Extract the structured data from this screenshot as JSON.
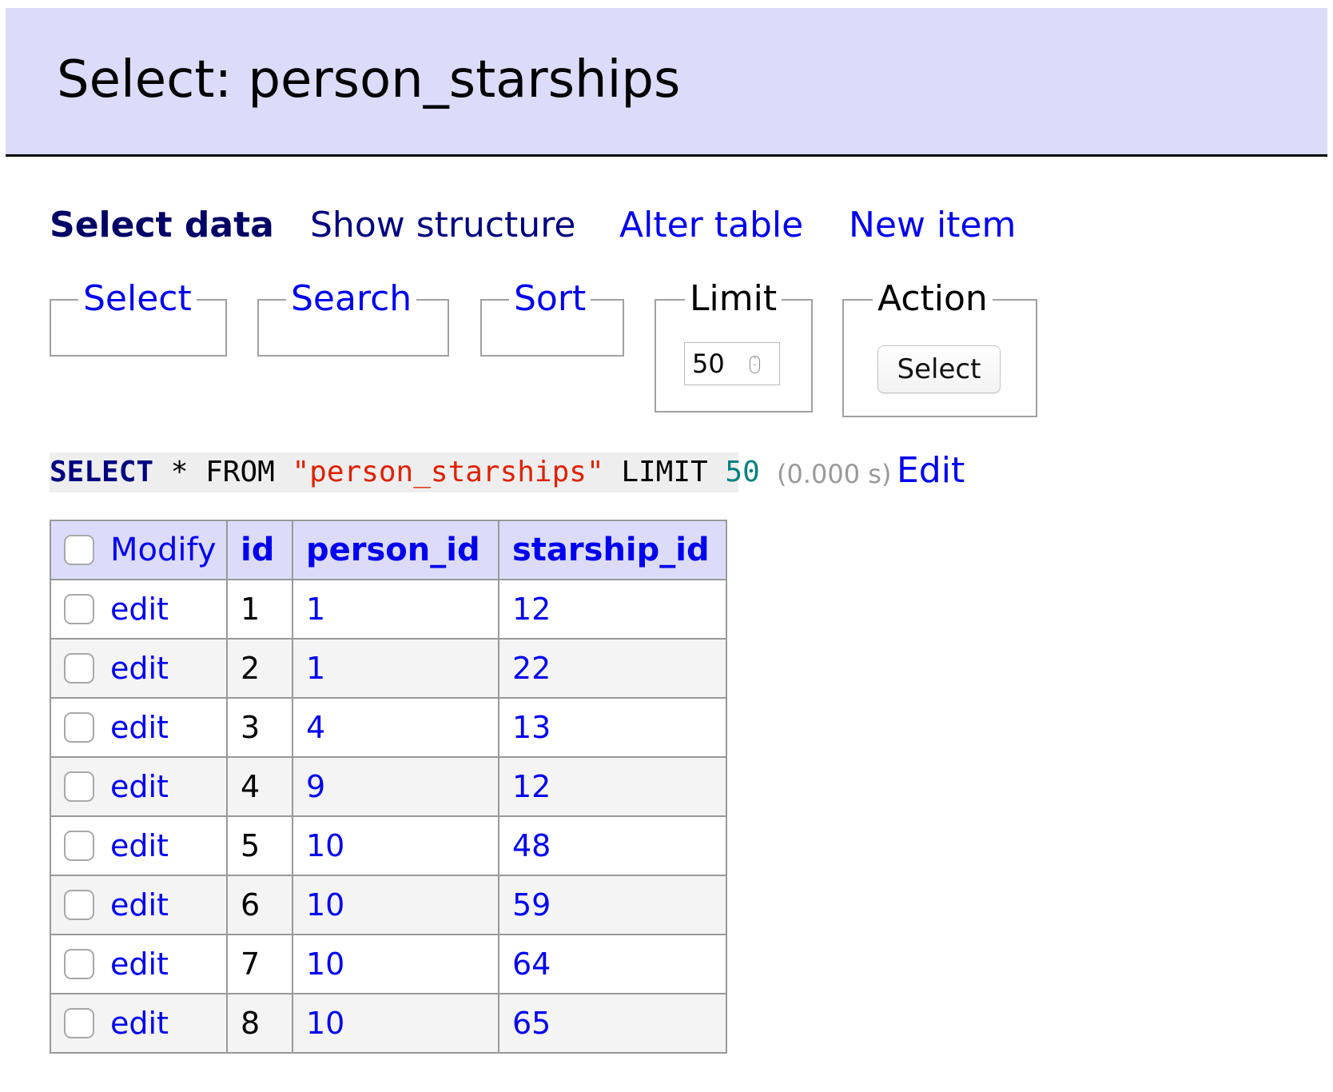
{
  "header": {
    "title": "Select: person_starships"
  },
  "nav": {
    "items": [
      {
        "label": "Select data"
      },
      {
        "label": "Show structure"
      },
      {
        "label": "Alter table"
      },
      {
        "label": "New item"
      }
    ]
  },
  "fieldsets": {
    "select": {
      "legend": "Select"
    },
    "search": {
      "legend": "Search"
    },
    "sort": {
      "legend": "Sort"
    },
    "limit": {
      "legend": "Limit",
      "value": "50"
    },
    "action": {
      "legend": "Action",
      "button": "Select"
    }
  },
  "sql": {
    "select_kw": "SELECT",
    "star": "*",
    "from_kw": "FROM",
    "table": "\"person_starships\"",
    "limit_kw": "LIMIT",
    "limit_val": "50",
    "time": "(0.000 s)",
    "edit": "Edit"
  },
  "table": {
    "headers": [
      "Modify",
      "id",
      "person_id",
      "starship_id"
    ],
    "edit_label": "edit",
    "rows": [
      {
        "id": "1",
        "person_id": "1",
        "starship_id": "12"
      },
      {
        "id": "2",
        "person_id": "1",
        "starship_id": "22"
      },
      {
        "id": "3",
        "person_id": "4",
        "starship_id": "13"
      },
      {
        "id": "4",
        "person_id": "9",
        "starship_id": "12"
      },
      {
        "id": "5",
        "person_id": "10",
        "starship_id": "48"
      },
      {
        "id": "6",
        "person_id": "10",
        "starship_id": "59"
      },
      {
        "id": "7",
        "person_id": "10",
        "starship_id": "64"
      },
      {
        "id": "8",
        "person_id": "10",
        "starship_id": "65"
      }
    ]
  },
  "colors": {
    "header_bg": "#dcdcfa",
    "link": "#0000ee",
    "sql_string": "#dd2200",
    "sql_number": "#008080"
  }
}
